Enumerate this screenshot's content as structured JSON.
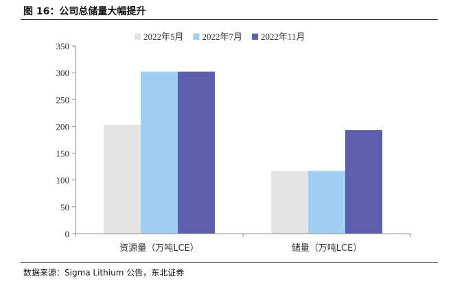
{
  "figure": {
    "title": "图 16：公司总储量大幅提升",
    "source": "数据来源：Sigma Lithium 公告，东北证券"
  },
  "chart_data": {
    "type": "bar",
    "categories": [
      "资源量（万吨LCE）",
      "储量（万吨LCE）"
    ],
    "series": [
      {
        "name": "2022年5月",
        "values": [
          203,
          117
        ],
        "color": "#e4e4e4"
      },
      {
        "name": "2022年7月",
        "values": [
          302,
          117
        ],
        "color": "#9fcff2"
      },
      {
        "name": "2022年11月",
        "values": [
          302,
          193
        ],
        "color": "#5c5fac"
      }
    ],
    "ylim": [
      0,
      350
    ],
    "yticks": [
      0,
      50,
      100,
      150,
      200,
      250,
      300,
      350
    ],
    "grid": false,
    "legend": "top-center"
  }
}
